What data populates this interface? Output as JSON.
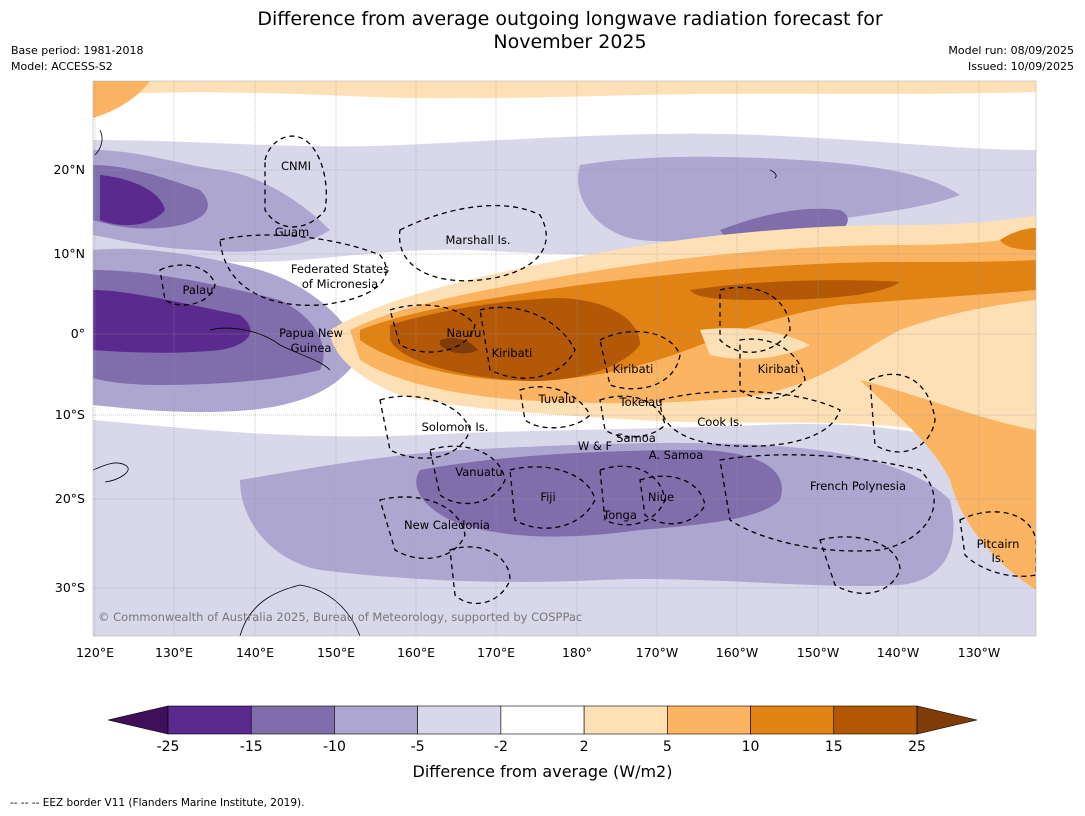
{
  "title_line1": "Difference from average outgoing longwave radiation forecast for",
  "title_line2": "November 2025",
  "base_period": "Base period: 1981-2018",
  "model": "Model: ACCESS-S2",
  "model_run": "Model run: 08/09/2025",
  "issued": "Issued: 10/09/2025",
  "copyright": "© Commonwealth of Australia 2025, Bureau of Meteorology, supported by COSPPac",
  "footer": "--  --  -- EEZ border V11 (Flanders Marine Institute, 2019).",
  "lon_labels": [
    "120°E",
    "130°E",
    "140°E",
    "150°E",
    "160°E",
    "170°E",
    "180°",
    "170°W",
    "160°W",
    "150°W",
    "140°W",
    "130°W"
  ],
  "lat_labels": [
    "20°N",
    "10°N",
    "0°",
    "10°S",
    "20°S",
    "30°S"
  ],
  "regions": [
    {
      "name": "CNMI"
    },
    {
      "name": "Guam"
    },
    {
      "name": "Marshall Is."
    },
    {
      "name": "Federated States"
    },
    {
      "name": "of Micronesia"
    },
    {
      "name": "Palau"
    },
    {
      "name": "Papua New"
    },
    {
      "name": "Guinea"
    },
    {
      "name": "Nauru"
    },
    {
      "name": "Kiribati"
    },
    {
      "name": "Kiribati"
    },
    {
      "name": "Kiribati"
    },
    {
      "name": "Tuvalu"
    },
    {
      "name": "Tokelau"
    },
    {
      "name": "Cook Is."
    },
    {
      "name": "Solomon Is."
    },
    {
      "name": "W & F"
    },
    {
      "name": "Samoa"
    },
    {
      "name": "A. Samoa"
    },
    {
      "name": "Vanuatu"
    },
    {
      "name": "Fiji"
    },
    {
      "name": "Niue"
    },
    {
      "name": "Tonga"
    },
    {
      "name": "New Caledonia"
    },
    {
      "name": "French Polynesia"
    },
    {
      "name": "Pitcairn"
    },
    {
      "name": "Is."
    }
  ],
  "colorbar": {
    "ticks": [
      "-25",
      "-15",
      "-10",
      "-5",
      "-2",
      "2",
      "5",
      "10",
      "15",
      "25"
    ],
    "colors": [
      "#3f0f5c",
      "#5a2a8e",
      "#7f6dac",
      "#ada6d0",
      "#d9d8eb",
      "#ffffff",
      "#fde0b6",
      "#fbb562",
      "#e08214",
      "#b35806",
      "#7f3b08"
    ],
    "label": "Difference from average (W/m2)"
  }
}
